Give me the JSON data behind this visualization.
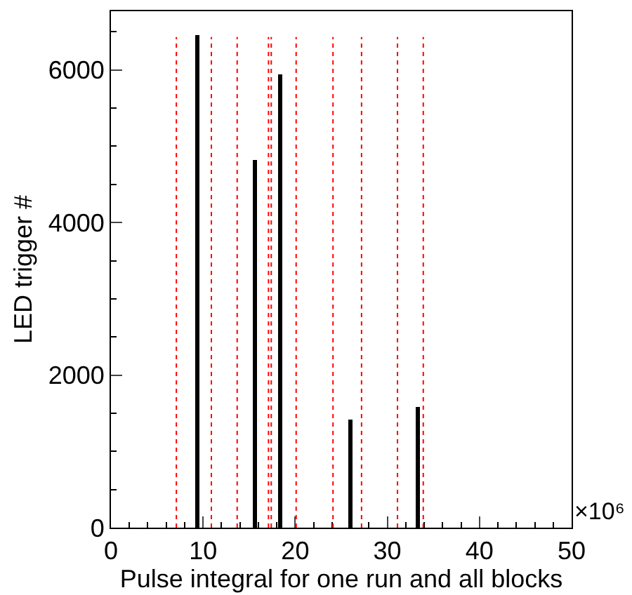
{
  "chart_data": {
    "type": "histogram",
    "xlabel": "Pulse integral for one run and all blocks",
    "ylabel": "LED trigger #",
    "annotations": [
      "×10⁶"
    ],
    "bins": [
      9.2,
      9.6,
      15.4,
      15.8,
      18.2,
      18.6,
      25.8,
      26.2,
      33.1,
      33.5
    ],
    "values": [
      6450,
      0,
      4820,
      0,
      5950,
      0,
      1420,
      0,
      1580
    ],
    "color": "#000000",
    "xlim": [
      0,
      50
    ],
    "xticks": [
      0,
      10,
      20,
      30,
      40,
      50
    ],
    "ylim": [
      0,
      6770
    ],
    "yticks": [
      0,
      2000,
      4000,
      6000
    ],
    "ref_lines": [
      {
        "axis": "x",
        "value": 7.1,
        "color": "#ff0000",
        "line_style": "dotted"
      },
      {
        "axis": "x",
        "value": 10.9,
        "color": "#ff0000",
        "line_style": "dotted"
      },
      {
        "axis": "x",
        "value": 13.7,
        "color": "#ff0000",
        "line_style": "dotted"
      },
      {
        "axis": "x",
        "value": 17.1,
        "color": "#ff0000",
        "line_style": "dotted"
      },
      {
        "axis": "x",
        "value": 17.4,
        "color": "#ff0000",
        "line_style": "dotted"
      },
      {
        "axis": "x",
        "value": 20.1,
        "color": "#ff0000",
        "line_style": "dotted"
      },
      {
        "axis": "x",
        "value": 24.1,
        "color": "#ff0000",
        "line_style": "dotted"
      },
      {
        "axis": "x",
        "value": 27.2,
        "color": "#ff0000",
        "line_style": "dotted"
      },
      {
        "axis": "x",
        "value": 31.1,
        "color": "#ff0000",
        "line_style": "dotted"
      },
      {
        "axis": "x",
        "value": 33.9,
        "color": "#ff0000",
        "line_style": "dotted"
      }
    ]
  }
}
